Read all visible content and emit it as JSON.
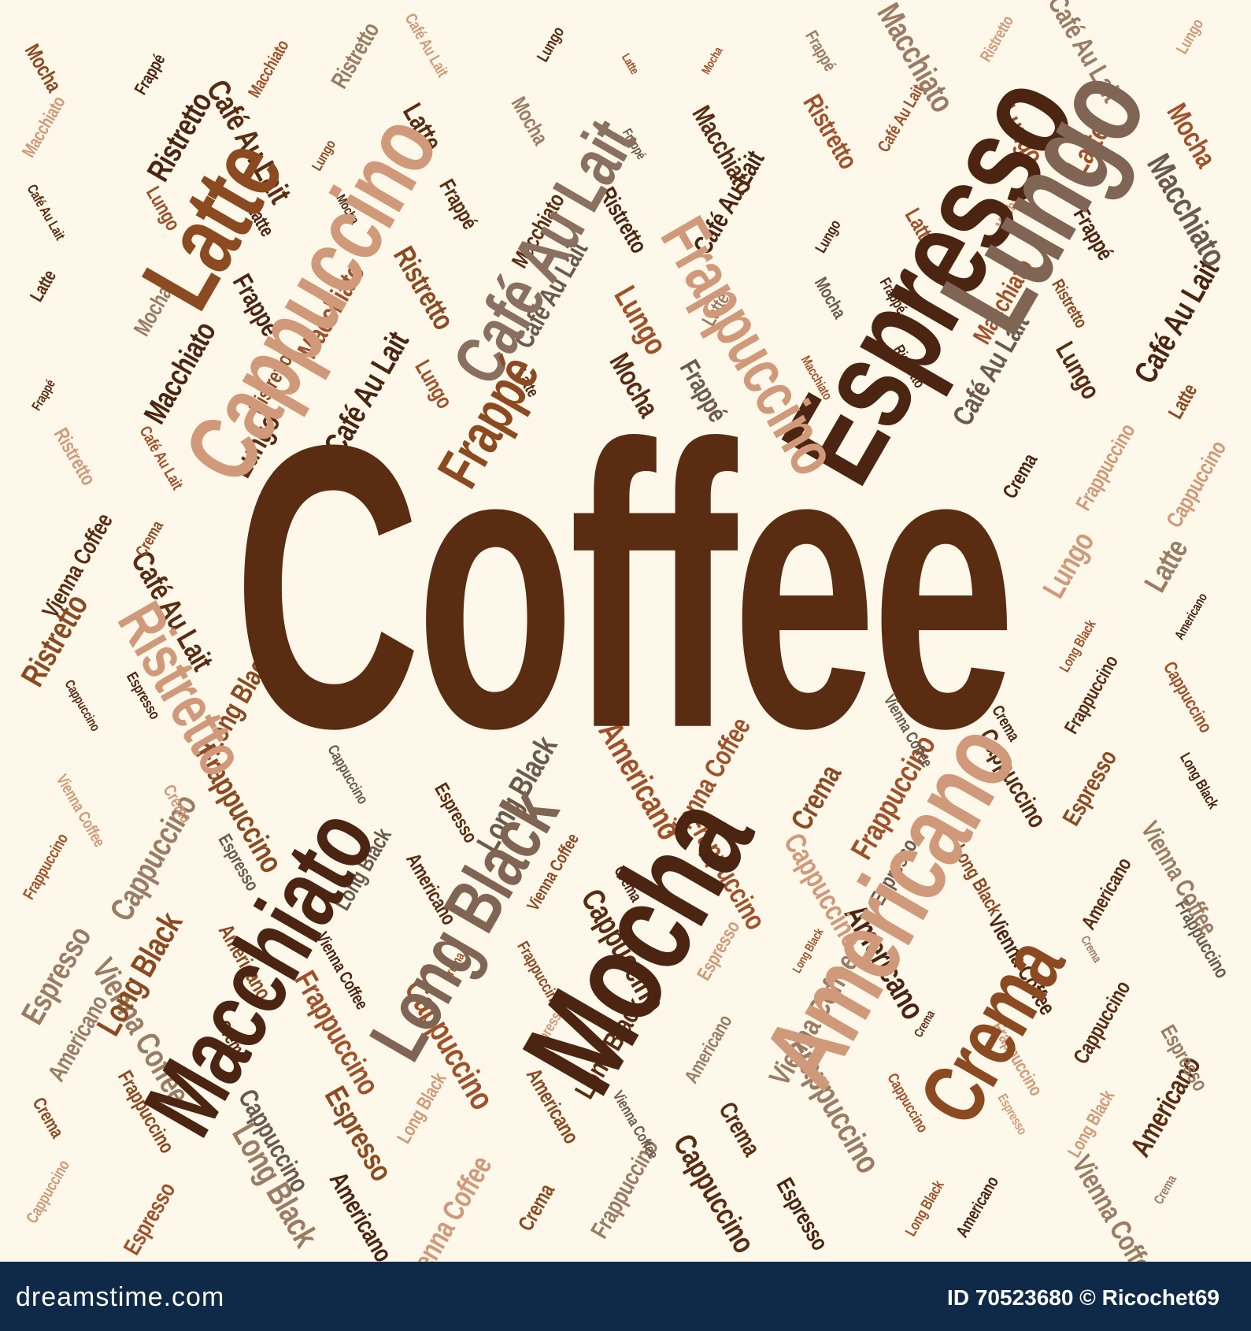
{
  "palette": [
    "#5a2c12",
    "#8c4a21",
    "#a0512a",
    "#6b5a4b",
    "#9a7c65",
    "#d09a7a",
    "#4b2512"
  ],
  "center_word": {
    "text": "Coffee",
    "color": "#5a2c12"
  },
  "major_words": [
    {
      "text": "Espresso",
      "color": "#4b2512"
    },
    {
      "text": "Lungo",
      "color": "#806555"
    },
    {
      "text": "Latte",
      "color": "#8c4a21"
    },
    {
      "text": "Cappuccino",
      "color": "#d09a7a"
    },
    {
      "text": "Café Au Lait",
      "color": "#8a7060"
    },
    {
      "text": "Frappuccino",
      "color": "#d09a7a"
    },
    {
      "text": "Mocha",
      "color": "#4b2512"
    },
    {
      "text": "Americano",
      "color": "#d09a7a"
    },
    {
      "text": "Macchiato",
      "color": "#4b2512"
    },
    {
      "text": "Long Black",
      "color": "#806555"
    },
    {
      "text": "Crema",
      "color": "#8c4a21"
    },
    {
      "text": "Ristretto",
      "color": "#d09a7a"
    },
    {
      "text": "Frappé",
      "color": "#8c4a21"
    }
  ],
  "minor_words": [
    "Mocha",
    "Crema",
    "Lungo",
    "Americano",
    "Ristretto",
    "Espresso",
    "Frappé",
    "Frappuccino",
    "Latte",
    "Vienna Coffee",
    "Café Au Lait",
    "Long Black",
    "Macchiato",
    "Cappuccino"
  ],
  "footer": {
    "brand": "dreamstime.com",
    "credit": "ID 70523680 © Ricochet69"
  }
}
